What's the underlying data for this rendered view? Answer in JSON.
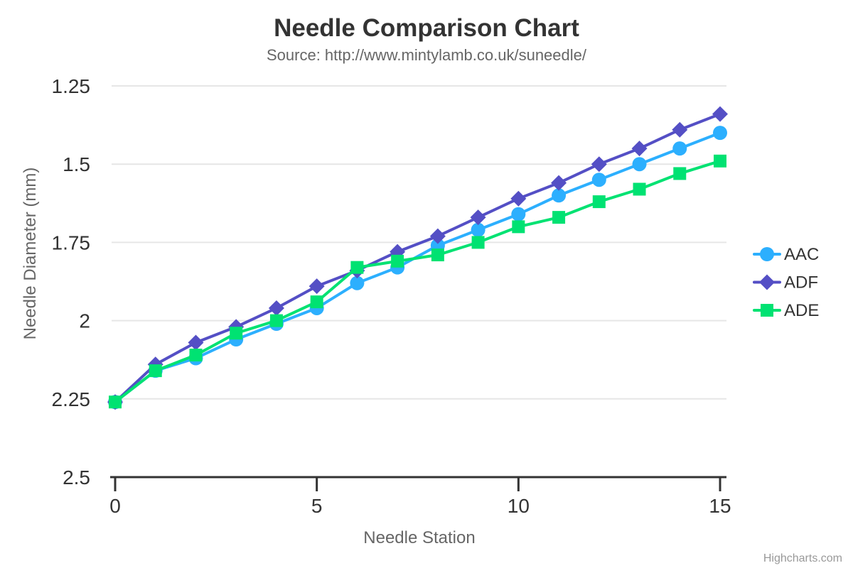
{
  "chart_data": {
    "type": "line",
    "title": "Needle Comparison Chart",
    "subtitle": "Source: http://www.mintylamb.co.uk/suneedle/",
    "xlabel": "Needle Station",
    "ylabel": "Needle Diameter (mm)",
    "xlim": [
      0,
      15
    ],
    "ylim": [
      1.25,
      2.5
    ],
    "y_reversed": true,
    "grid": true,
    "legend_position": "right-middle",
    "x_ticks": [
      0,
      5,
      10,
      15
    ],
    "x_tick_labels": [
      "0",
      "5",
      "10",
      "15"
    ],
    "y_ticks": [
      1.25,
      1.5,
      1.75,
      2,
      2.25,
      2.5
    ],
    "y_tick_labels": [
      "1.25",
      "1.5",
      "1.75",
      "2",
      "2.25",
      "2.5"
    ],
    "x": [
      0,
      1,
      2,
      3,
      4,
      5,
      6,
      7,
      8,
      9,
      10,
      11,
      12,
      13,
      14,
      15
    ],
    "series": [
      {
        "name": "AAC",
        "color": "#2caffe",
        "symbol": "circle",
        "values": [
          2.26,
          2.16,
          2.12,
          2.06,
          2.01,
          1.96,
          1.88,
          1.83,
          1.76,
          1.71,
          1.66,
          1.6,
          1.55,
          1.5,
          1.45,
          1.4
        ]
      },
      {
        "name": "ADF",
        "color": "#544fc5",
        "symbol": "diamond",
        "values": [
          2.26,
          2.14,
          2.07,
          2.02,
          1.96,
          1.89,
          1.84,
          1.78,
          1.73,
          1.67,
          1.61,
          1.56,
          1.5,
          1.45,
          1.39,
          1.34
        ]
      },
      {
        "name": "ADE",
        "color": "#00e272",
        "symbol": "square",
        "values": [
          2.26,
          2.16,
          2.11,
          2.04,
          2.0,
          1.94,
          1.83,
          1.81,
          1.79,
          1.75,
          1.7,
          1.67,
          1.62,
          1.58,
          1.53,
          1.49
        ]
      }
    ]
  },
  "credits": {
    "label": "Highcharts.com"
  },
  "colors": {
    "background": "#ffffff",
    "title": "#333333",
    "subtitle": "#666666",
    "tick_label": "#333333",
    "axis_title": "#666666",
    "legend_text": "#333333",
    "grid": "#e6e6e6",
    "axis_line": "#333333",
    "credits": "#999999"
  }
}
